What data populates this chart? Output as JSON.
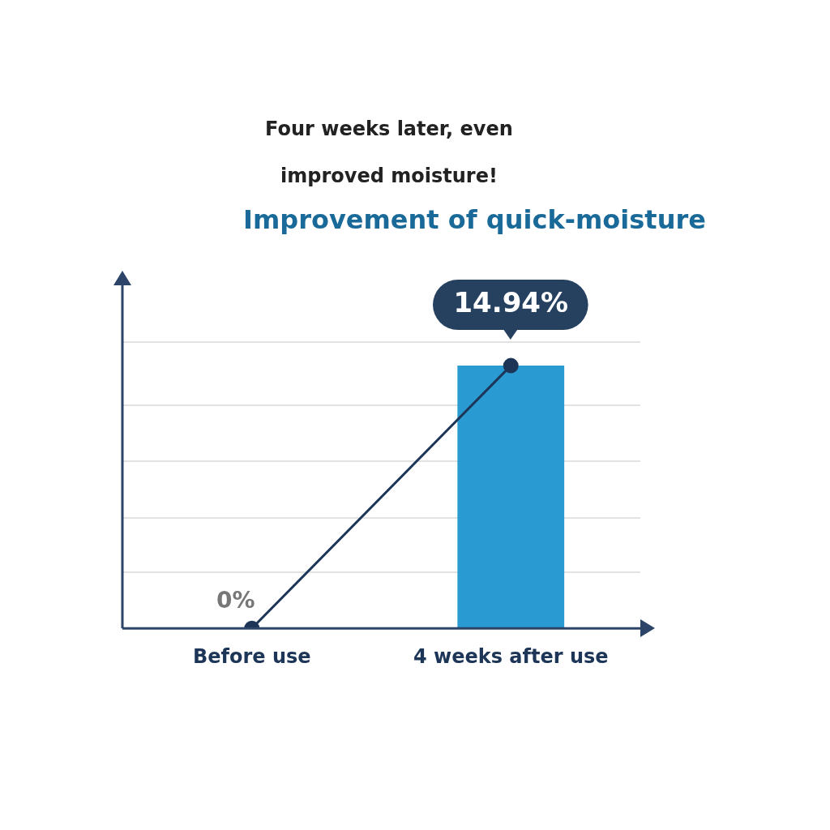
{
  "chart_data": {
    "type": "bar",
    "subtitle": "Four weeks later, even improved moisture!",
    "title": "Improvement of quick-moisture",
    "categories": [
      "Before use",
      "4 weeks after use"
    ],
    "series": [
      {
        "color": "#2a9bd2",
        "values": [
          0,
          14.94
        ]
      },
      {
        "type": "line",
        "color": "#1d3557",
        "values": [
          0,
          14.94
        ],
        "value_labels": [
          "0%",
          "14.94%"
        ]
      }
    ],
    "ylim": [
      0,
      19.6
    ],
    "yticks": [
      {
        "value": 3.2,
        "label": null
      },
      {
        "value": 6.3,
        "label": null
      },
      {
        "value": 9.5,
        "label": null
      },
      {
        "value": 12.7,
        "label": null
      },
      {
        "value": 16.3,
        "label": null
      }
    ],
    "grid": "y",
    "tick_labels": "x",
    "marker": "circle",
    "line_style": "solid",
    "legend": false
  }
}
